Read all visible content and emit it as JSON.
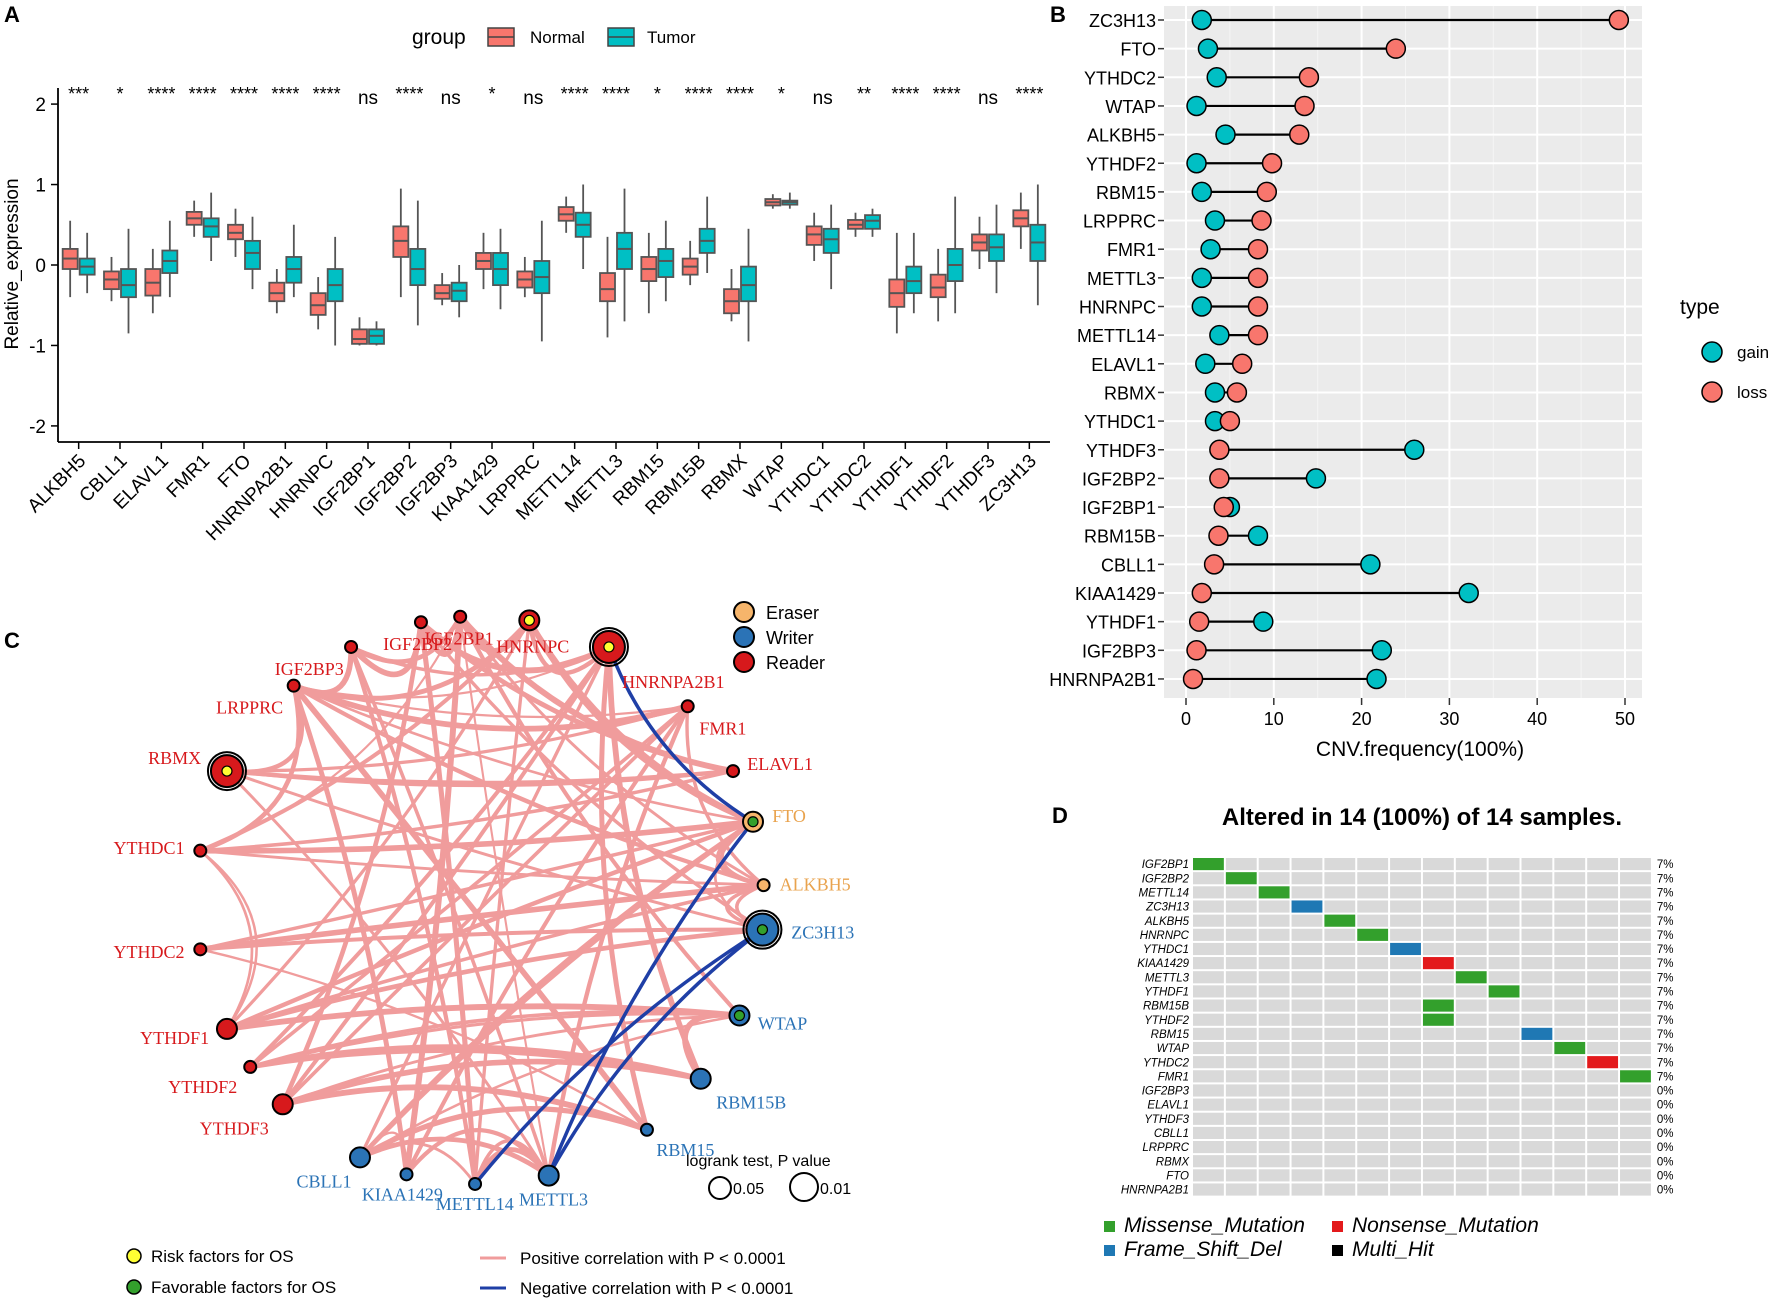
{
  "panel_labels": {
    "a": "A",
    "b": "B",
    "c": "C",
    "d": "D"
  },
  "chart_data": [
    {
      "id": "A",
      "type": "box",
      "title": "",
      "xlabel": "",
      "ylabel": "Relative_expression",
      "ylim": [
        -2.2,
        2.2
      ],
      "yticks": [
        2,
        1,
        0,
        -1,
        -2
      ],
      "legend": {
        "title": "group",
        "entries": [
          "Normal",
          "Tumor"
        ],
        "colors": [
          "#F8766D",
          "#00BFC4"
        ],
        "placement": "top"
      },
      "categories": [
        "ALKBH5",
        "CBLL1",
        "ELAVL1",
        "FMR1",
        "FTO",
        "HNRNPA2B1",
        "HNRNPC",
        "IGF2BP1",
        "IGF2BP2",
        "IGF2BP3",
        "KIAA1429",
        "LRPPRC",
        "METTL14",
        "METTL3",
        "RBM15",
        "RBM15B",
        "RBMX",
        "WTAP",
        "YTHDC1",
        "YTHDC2",
        "YTHDF1",
        "YTHDF2",
        "YTHDF3",
        "ZC3H13"
      ],
      "significance": [
        "***",
        "*",
        "****",
        "****",
        "****",
        "****",
        "****",
        "ns",
        "****",
        "ns",
        "*",
        "ns",
        "****",
        "****",
        "*",
        "****",
        "****",
        "*",
        "ns",
        "**",
        "****",
        "****",
        "ns",
        "****"
      ],
      "series": [
        {
          "name": "Normal",
          "boxes": [
            [
              -0.4,
              -0.05,
              0.08,
              0.2,
              0.55
            ],
            [
              -0.45,
              -0.3,
              -0.18,
              -0.08,
              0.1
            ],
            [
              -0.6,
              -0.38,
              -0.22,
              -0.05,
              0.2
            ],
            [
              0.35,
              0.5,
              0.58,
              0.66,
              0.8
            ],
            [
              0.1,
              0.32,
              0.4,
              0.5,
              0.7
            ],
            [
              -0.6,
              -0.45,
              -0.35,
              -0.22,
              -0.05
            ],
            [
              -0.8,
              -0.62,
              -0.5,
              -0.35,
              -0.15
            ],
            [
              -1.0,
              -0.98,
              -0.92,
              -0.8,
              -0.65
            ],
            [
              -0.4,
              0.1,
              0.3,
              0.48,
              0.95
            ],
            [
              -0.5,
              -0.42,
              -0.35,
              -0.25,
              -0.1
            ],
            [
              -0.3,
              -0.05,
              0.05,
              0.15,
              0.4
            ],
            [
              -0.4,
              -0.28,
              -0.18,
              -0.08,
              0.1
            ],
            [
              0.4,
              0.55,
              0.63,
              0.72,
              0.85
            ],
            [
              -0.9,
              -0.45,
              -0.3,
              -0.1,
              0.35
            ],
            [
              -0.6,
              -0.2,
              -0.05,
              0.1,
              0.4
            ],
            [
              -0.25,
              -0.12,
              -0.02,
              0.08,
              0.3
            ],
            [
              -0.7,
              -0.6,
              -0.45,
              -0.3,
              -0.05
            ],
            [
              0.7,
              0.74,
              0.78,
              0.82,
              0.88
            ],
            [
              0.05,
              0.25,
              0.38,
              0.48,
              0.65
            ],
            [
              0.35,
              0.45,
              0.5,
              0.56,
              0.65
            ],
            [
              -0.85,
              -0.52,
              -0.35,
              -0.18,
              0.4
            ],
            [
              -0.7,
              -0.4,
              -0.28,
              -0.12,
              0.2
            ],
            [
              -0.05,
              0.18,
              0.28,
              0.38,
              0.6
            ],
            [
              0.2,
              0.48,
              0.58,
              0.68,
              0.9
            ]
          ]
        },
        {
          "name": "Tumor",
          "boxes": [
            [
              -0.35,
              -0.12,
              -0.02,
              0.08,
              0.4
            ],
            [
              -0.85,
              -0.4,
              -0.25,
              -0.05,
              0.45
            ],
            [
              -0.4,
              -0.1,
              0.05,
              0.18,
              0.55
            ],
            [
              0.05,
              0.35,
              0.48,
              0.58,
              0.9
            ],
            [
              -0.3,
              -0.05,
              0.15,
              0.3,
              0.6
            ],
            [
              -0.4,
              -0.22,
              -0.05,
              0.1,
              0.5
            ],
            [
              -1.0,
              -0.45,
              -0.25,
              -0.05,
              0.35
            ],
            [
              -1.0,
              -0.98,
              -0.88,
              -0.8,
              -0.7
            ],
            [
              -0.75,
              -0.25,
              -0.05,
              0.2,
              0.8
            ],
            [
              -0.65,
              -0.45,
              -0.32,
              -0.22,
              0.0
            ],
            [
              -0.55,
              -0.25,
              -0.05,
              0.15,
              0.45
            ],
            [
              -0.95,
              -0.35,
              -0.15,
              0.05,
              0.55
            ],
            [
              -0.05,
              0.35,
              0.5,
              0.65,
              1.0
            ],
            [
              -0.7,
              -0.05,
              0.2,
              0.4,
              0.95
            ],
            [
              -0.45,
              -0.15,
              0.05,
              0.2,
              0.55
            ],
            [
              -0.1,
              0.15,
              0.3,
              0.45,
              0.85
            ],
            [
              -0.95,
              -0.45,
              -0.25,
              -0.02,
              0.45
            ],
            [
              0.7,
              0.75,
              0.78,
              0.8,
              0.9
            ],
            [
              -0.3,
              0.15,
              0.32,
              0.45,
              0.75
            ],
            [
              0.35,
              0.45,
              0.55,
              0.62,
              0.7
            ],
            [
              -0.6,
              -0.35,
              -0.2,
              -0.02,
              0.4
            ],
            [
              -0.6,
              -0.2,
              0.0,
              0.2,
              0.85
            ],
            [
              -0.35,
              0.05,
              0.22,
              0.38,
              0.75
            ],
            [
              -0.5,
              0.05,
              0.28,
              0.5,
              1.0
            ]
          ]
        }
      ]
    },
    {
      "id": "B",
      "type": "lollipop",
      "xlabel": "CNV.frequency(100%)",
      "xlim": [
        0,
        50
      ],
      "xticks": [
        0,
        10,
        20,
        30,
        40,
        50
      ],
      "legend": {
        "title": "type",
        "entries": [
          "gain",
          "loss"
        ],
        "colors": [
          "#00BFC4",
          "#F8766D"
        ],
        "placement": "right"
      },
      "categories": [
        "ZC3H13",
        "FTO",
        "YTHDC2",
        "WTAP",
        "ALKBH5",
        "YTHDF2",
        "RBM15",
        "LRPPRC",
        "FMR1",
        "METTL3",
        "HNRNPC",
        "METTL14",
        "ELAVL1",
        "RBMX",
        "YTHDC1",
        "YTHDF3",
        "IGF2BP2",
        "IGF2BP1",
        "RBM15B",
        "CBLL1",
        "KIAA1429",
        "YTHDF1",
        "IGF2BP3",
        "HNRNPA2B1"
      ],
      "gain": [
        1.8,
        2.5,
        3.5,
        1.2,
        4.5,
        1.2,
        1.8,
        3.3,
        2.8,
        1.8,
        1.8,
        3.8,
        2.2,
        3.3,
        3.3,
        26.0,
        14.8,
        5.0,
        8.2,
        21.0,
        32.2,
        8.8,
        22.3,
        21.7
      ],
      "loss": [
        49.3,
        23.9,
        14.0,
        13.5,
        12.9,
        9.8,
        9.2,
        8.6,
        8.2,
        8.2,
        8.2,
        8.2,
        6.4,
        5.8,
        5.0,
        3.8,
        3.8,
        4.3,
        3.7,
        3.2,
        1.8,
        1.5,
        1.2,
        0.8
      ]
    },
    {
      "id": "C",
      "type": "network",
      "nodes": [
        {
          "name": "IGF2BP2",
          "role": "Reader",
          "os": "none",
          "p": "small"
        },
        {
          "name": "IGF2BP1",
          "role": "Reader",
          "os": "none",
          "p": "small"
        },
        {
          "name": "HNRNPC",
          "role": "Reader",
          "os": "risk",
          "p": "mid"
        },
        {
          "name": "HNRNPA2B1",
          "role": "Reader",
          "os": "risk",
          "p": "large"
        },
        {
          "name": "IGF2BP3",
          "role": "Reader",
          "os": "none",
          "p": "small"
        },
        {
          "name": "LRPPRC",
          "role": "Reader",
          "os": "none",
          "p": "small"
        },
        {
          "name": "FMR1",
          "role": "Reader",
          "os": "none",
          "p": "small"
        },
        {
          "name": "RBMX",
          "role": "Reader",
          "os": "risk",
          "p": "large"
        },
        {
          "name": "ELAVL1",
          "role": "Reader",
          "os": "none",
          "p": "small"
        },
        {
          "name": "YTHDC1",
          "role": "Reader",
          "os": "none",
          "p": "small"
        },
        {
          "name": "FTO",
          "role": "Eraser",
          "os": "favorable",
          "p": "mid"
        },
        {
          "name": "ALKBH5",
          "role": "Eraser",
          "os": "none",
          "p": "small"
        },
        {
          "name": "YTHDC2",
          "role": "Reader",
          "os": "none",
          "p": "small"
        },
        {
          "name": "ZC3H13",
          "role": "Writer",
          "os": "favorable",
          "p": "large"
        },
        {
          "name": "YTHDF1",
          "role": "Reader",
          "os": "none",
          "p": "mid"
        },
        {
          "name": "WTAP",
          "role": "Writer",
          "os": "favorable",
          "p": "mid"
        },
        {
          "name": "YTHDF2",
          "role": "Reader",
          "os": "none",
          "p": "small"
        },
        {
          "name": "RBM15B",
          "role": "Writer",
          "os": "none",
          "p": "mid"
        },
        {
          "name": "YTHDF3",
          "role": "Reader",
          "os": "none",
          "p": "mid"
        },
        {
          "name": "RBM15",
          "role": "Writer",
          "os": "none",
          "p": "small"
        },
        {
          "name": "CBLL1",
          "role": "Writer",
          "os": "none",
          "p": "mid"
        },
        {
          "name": "KIAA1429",
          "role": "Writer",
          "os": "none",
          "p": "small"
        },
        {
          "name": "METTL3",
          "role": "Writer",
          "os": "none",
          "p": "mid"
        },
        {
          "name": "METTL14",
          "role": "Writer",
          "os": "none",
          "p": "small"
        }
      ],
      "negative_edges": [
        [
          "HNRNPA2B1",
          "FTO"
        ],
        [
          "FTO",
          "METTL3"
        ],
        [
          "ZC3H13",
          "METTL3"
        ],
        [
          "ZC3H13",
          "METTL14"
        ]
      ],
      "role_legend": [
        {
          "label": "Eraser",
          "color": "#F6B56B"
        },
        {
          "label": "Writer",
          "color": "#2B73B6"
        },
        {
          "label": "Reader",
          "color": "#D7191C"
        }
      ],
      "size_legend": {
        "title": "logrank test, P value",
        "items": [
          "0.05",
          "0.01"
        ]
      },
      "os_legend": [
        {
          "label": "Risk factors for OS",
          "color": "#FFFF33"
        },
        {
          "label": "Favorable factors for OS",
          "color": "#33A02C"
        }
      ],
      "edge_legend": [
        {
          "label": "Positive correlation with P < 0.0001",
          "color": "#F09C9C"
        },
        {
          "label": "Negative correlation with P < 0.0001",
          "color": "#1F3FA6"
        }
      ]
    },
    {
      "id": "D",
      "type": "heatmap",
      "title": "Altered in 14 (100%) of 14 samples.",
      "genes": [
        "IGF2BP1",
        "IGF2BP2",
        "METTL14",
        "ZC3H13",
        "ALKBH5",
        "HNRNPC",
        "YTHDC1",
        "KIAA1429",
        "METTL3",
        "YTHDF1",
        "RBM15B",
        "YTHDF2",
        "RBM15",
        "WTAP",
        "YTHDC2",
        "FMR1",
        "IGF2BP3",
        "ELAVL1",
        "YTHDF3",
        "CBLL1",
        "LRPPRC",
        "RBMX",
        "FTO",
        "HNRNPA2B1"
      ],
      "percents": [
        "7%",
        "7%",
        "7%",
        "7%",
        "7%",
        "7%",
        "7%",
        "7%",
        "7%",
        "7%",
        "7%",
        "7%",
        "7%",
        "7%",
        "7%",
        "7%",
        "0%",
        "0%",
        "0%",
        "0%",
        "0%",
        "0%",
        "0%",
        "0%"
      ],
      "samples": 14,
      "mutations": [
        {
          "gene": 0,
          "sample": 0,
          "type": "Missense_Mutation"
        },
        {
          "gene": 1,
          "sample": 1,
          "type": "Missense_Mutation"
        },
        {
          "gene": 2,
          "sample": 2,
          "type": "Missense_Mutation"
        },
        {
          "gene": 3,
          "sample": 3,
          "type": "Frame_Shift_Del"
        },
        {
          "gene": 4,
          "sample": 4,
          "type": "Missense_Mutation"
        },
        {
          "gene": 5,
          "sample": 5,
          "type": "Missense_Mutation"
        },
        {
          "gene": 6,
          "sample": 6,
          "type": "Frame_Shift_Del"
        },
        {
          "gene": 7,
          "sample": 7,
          "type": "Nonsense_Mutation"
        },
        {
          "gene": 8,
          "sample": 8,
          "type": "Missense_Mutation"
        },
        {
          "gene": 9,
          "sample": 9,
          "type": "Missense_Mutation"
        },
        {
          "gene": 10,
          "sample": 7,
          "type": "Missense_Mutation"
        },
        {
          "gene": 11,
          "sample": 7,
          "type": "Missense_Mutation"
        },
        {
          "gene": 12,
          "sample": 10,
          "type": "Frame_Shift_Del"
        },
        {
          "gene": 13,
          "sample": 11,
          "type": "Missense_Mutation"
        },
        {
          "gene": 14,
          "sample": 12,
          "type": "Nonsense_Mutation"
        },
        {
          "gene": 15,
          "sample": 13,
          "type": "Missense_Mutation"
        }
      ],
      "legend": [
        {
          "label": "Missense_Mutation",
          "color": "#33A02C"
        },
        {
          "label": "Nonsense_Mutation",
          "color": "#E31A1C"
        },
        {
          "label": "Frame_Shift_Del",
          "color": "#1F78B4"
        },
        {
          "label": "Multi_Hit",
          "color": "#000000"
        }
      ]
    }
  ]
}
